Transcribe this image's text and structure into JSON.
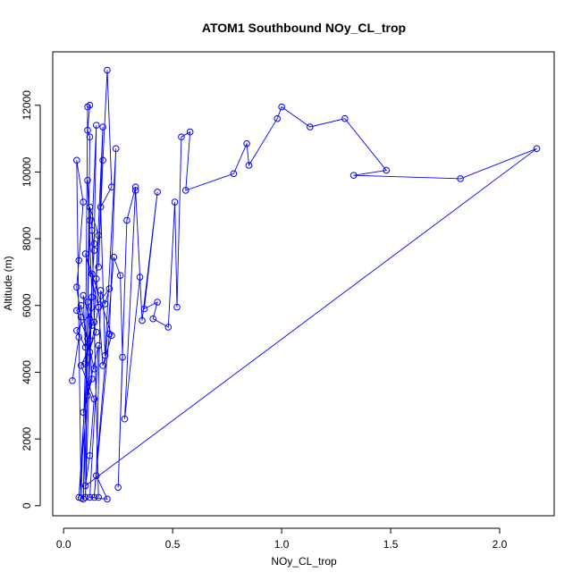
{
  "chart_data": {
    "type": "line",
    "title": "ATOM1 Southbound NOy_CL_trop",
    "xlabel": "NOy_CL_trop",
    "ylabel": "Altitude (m)",
    "xlim": [
      -0.05,
      2.25
    ],
    "ylim": [
      -300,
      13600
    ],
    "x_ticks": [
      0.0,
      0.5,
      1.0,
      1.5,
      2.0
    ],
    "x_tick_labels": [
      "0.0",
      "0.5",
      "1.0",
      "1.5",
      "2.0"
    ],
    "y_ticks": [
      0,
      2000,
      4000,
      6000,
      8000,
      10000,
      12000
    ],
    "y_tick_labels": [
      "0",
      "2000",
      "4000",
      "6000",
      "8000",
      "10000",
      "12000"
    ],
    "grid": false,
    "series_color": "#0000ff",
    "marker": "open-circle",
    "series": [
      {
        "points": [
          [
            0.04,
            3750
          ],
          [
            0.07,
            5050
          ],
          [
            0.08,
            5650
          ],
          [
            0.06,
            6550
          ],
          [
            0.07,
            7350
          ],
          [
            0.09,
            9100
          ],
          [
            0.06,
            10350
          ],
          [
            0.08,
            230
          ],
          [
            0.1,
            4250
          ],
          [
            0.11,
            11950
          ],
          [
            0.12,
            12000
          ],
          [
            0.11,
            11250
          ],
          [
            0.12,
            11050
          ],
          [
            0.1,
            250
          ],
          [
            0.13,
            6250
          ],
          [
            0.11,
            9750
          ],
          [
            0.12,
            8550
          ],
          [
            0.09,
            200
          ],
          [
            0.12,
            4950
          ],
          [
            0.14,
            7850
          ],
          [
            0.15,
            11400
          ],
          [
            0.13,
            8250
          ],
          [
            0.16,
            250
          ],
          [
            0.14,
            5500
          ],
          [
            0.18,
            11350
          ],
          [
            0.16,
            7150
          ],
          [
            0.18,
            10350
          ],
          [
            0.2,
            13050
          ],
          [
            0.22,
            9550
          ],
          [
            0.17,
            8950
          ],
          [
            0.19,
            4500
          ],
          [
            0.24,
            10700
          ],
          [
            0.21,
            5150
          ],
          [
            0.14,
            250
          ],
          [
            0.23,
            7450
          ],
          [
            0.26,
            6900
          ],
          [
            0.27,
            4450
          ],
          [
            0.25,
            550
          ],
          [
            0.29,
            8550
          ],
          [
            0.33,
            9550
          ],
          [
            0.28,
            2600
          ],
          [
            0.35,
            6850
          ],
          [
            0.33,
            9450
          ],
          [
            0.36,
            5550
          ],
          [
            0.43,
            9400
          ],
          [
            0.37,
            5900
          ],
          [
            0.43,
            6100
          ],
          [
            0.41,
            5600
          ],
          [
            0.48,
            5350
          ],
          [
            0.51,
            9100
          ],
          [
            0.52,
            5950
          ],
          [
            0.54,
            11050
          ],
          [
            0.58,
            11200
          ],
          [
            0.56,
            9450
          ],
          [
            0.78,
            9950
          ],
          [
            0.84,
            10850
          ],
          [
            0.85,
            10200
          ],
          [
            0.98,
            11600
          ],
          [
            1.0,
            11950
          ],
          [
            1.13,
            11350
          ],
          [
            1.29,
            11600
          ],
          [
            1.48,
            10050
          ],
          [
            1.33,
            9900
          ],
          [
            1.82,
            9800
          ],
          [
            2.17,
            10700
          ],
          [
            0.1,
            600
          ],
          [
            0.12,
            1500
          ],
          [
            0.14,
            3200
          ],
          [
            0.08,
            4200
          ],
          [
            0.15,
            5200
          ],
          [
            0.11,
            6100
          ],
          [
            0.13,
            3800
          ],
          [
            0.09,
            2800
          ],
          [
            0.16,
            4800
          ],
          [
            0.12,
            250
          ],
          [
            0.2,
            200
          ],
          [
            0.15,
            900
          ],
          [
            0.17,
            6450
          ],
          [
            0.19,
            6050
          ],
          [
            0.21,
            6500
          ],
          [
            0.06,
            5250
          ],
          [
            0.1,
            4750
          ],
          [
            0.13,
            5400
          ],
          [
            0.09,
            6300
          ],
          [
            0.11,
            3300
          ],
          [
            0.07,
            250
          ],
          [
            0.14,
            7650
          ],
          [
            0.12,
            8950
          ],
          [
            0.16,
            8100
          ],
          [
            0.15,
            6800
          ],
          [
            0.18,
            4200
          ],
          [
            0.22,
            5100
          ],
          [
            0.13,
            6950
          ],
          [
            0.1,
            7550
          ],
          [
            0.16,
            5950
          ],
          [
            0.12,
            4600
          ],
          [
            0.08,
            6000
          ],
          [
            0.06,
            5850
          ],
          [
            0.11,
            5000
          ],
          [
            0.14,
            4100
          ]
        ]
      }
    ]
  }
}
